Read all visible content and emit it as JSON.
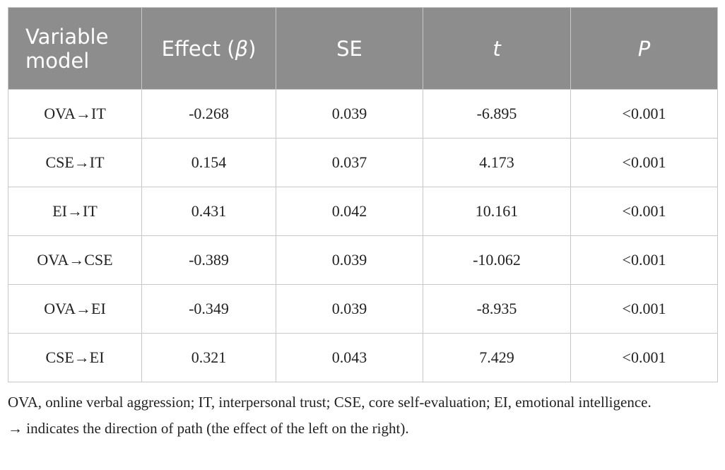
{
  "table": {
    "header": [
      [
        {
          "text": "Variable model"
        }
      ],
      [
        {
          "text": "Effect ("
        },
        {
          "text": "β",
          "italic": true
        },
        {
          "text": ")"
        }
      ],
      [
        {
          "text": "SE"
        }
      ],
      [
        {
          "text": "t",
          "italic": true
        }
      ],
      [
        {
          "text": "P",
          "italic": true
        }
      ]
    ],
    "rows": [
      [
        "OVA→IT",
        "-0.268",
        "0.039",
        "-6.895",
        "<0.001"
      ],
      [
        "CSE→IT",
        "0.154",
        "0.037",
        "4.173",
        "<0.001"
      ],
      [
        "EI→IT",
        "0.431",
        "0.042",
        "10.161",
        "<0.001"
      ],
      [
        "OVA→CSE",
        "-0.389",
        "0.039",
        "-10.062",
        "<0.001"
      ],
      [
        "OVA→EI",
        "-0.349",
        "0.039",
        "-8.935",
        "<0.001"
      ],
      [
        "CSE→EI",
        "0.321",
        "0.043",
        "7.429",
        "<0.001"
      ]
    ]
  },
  "footnotes": [
    "OVA, online verbal aggression; IT, interpersonal trust; CSE, core self-evaluation; EI, emotional intelligence.",
    "→ indicates the direction of path (the effect of the left on the right)."
  ]
}
